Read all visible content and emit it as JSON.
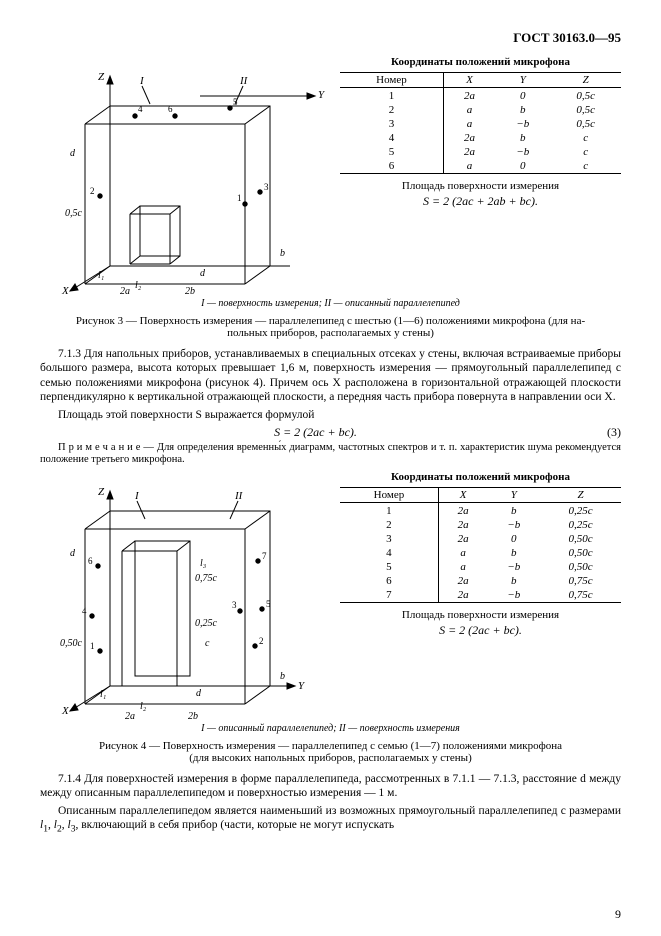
{
  "header": "ГОСТ 30163.0—95",
  "fig3": {
    "legend": "I — поверхность измерения; II — описанный параллелепипед",
    "caption_line1": "Рисунок 3 — Поверхность измерения — параллелепипед с шестью (1—6) положениями микрофона (для на-",
    "caption_line2": "польных приборов, располагаемых у стены)"
  },
  "table1": {
    "title": "Координаты положений микрофона",
    "headers": [
      "Номер",
      "X",
      "Y",
      "Z"
    ],
    "rows": [
      [
        "1",
        "2a",
        "0",
        "0,5c"
      ],
      [
        "2",
        "a",
        "b",
        "0,5c"
      ],
      [
        "3",
        "a",
        "−b",
        "0,5c"
      ],
      [
        "4",
        "2a",
        "b",
        "c"
      ],
      [
        "5",
        "2a",
        "−b",
        "c"
      ],
      [
        "6",
        "a",
        "0",
        "c"
      ]
    ],
    "area_caption": "Площадь поверхности измерения",
    "formula": "S = 2 (2ac + 2ab + bc)."
  },
  "para_713": "7.1.3 Для напольных приборов, устанавливаемых в специальных отсеках у стены, включая встраиваемые приборы большого размера, высота которых превышает 1,6 м, поверхность измерения — прямоугольный параллелепипед с семью положениями микрофона (рисунок 4). Причем ось X расположена в горизонтальной отражающей плоскости перпендикулярно к вертикальной отражающей плоскости, а передняя часть прибора повернута в направлении оси X.",
  "para_area": "Площадь этой поверхности S выражается формулой",
  "formula3": "S = 2 (2ac + bc).",
  "eqnum3": "(3)",
  "note": "П р и м е ч а н и е — Для определения временны́х диаграмм, частотных спектров и т. п. характеристик шума рекомендуется положение третьего микрофона.",
  "table2": {
    "title": "Координаты положений микрофона",
    "headers": [
      "Номер",
      "X",
      "Y",
      "Z"
    ],
    "rows": [
      [
        "1",
        "2a",
        "b",
        "0,25c"
      ],
      [
        "2",
        "2a",
        "−b",
        "0,25c"
      ],
      [
        "3",
        "2a",
        "0",
        "0,50c"
      ],
      [
        "4",
        "a",
        "b",
        "0,50c"
      ],
      [
        "5",
        "a",
        "−b",
        "0,50c"
      ],
      [
        "6",
        "2a",
        "b",
        "0,75c"
      ],
      [
        "7",
        "2a",
        "−b",
        "0,75c"
      ]
    ],
    "area_caption": "Площадь поверхности измерения",
    "formula": "S = 2 (2ac + bc)."
  },
  "fig4": {
    "legend": "I — описанный параллелепипед; II — поверхность измерения",
    "caption_line1": "Рисунок 4 — Поверхность измерения — параллелепипед с семью (1—7) положениями микрофона",
    "caption_line2": "(для высоких напольных приборов, располагаемых у стены)"
  },
  "para_714a": "7.1.4 Для поверхностей измерения в форме параллелепипеда, рассмотренных в 7.1.1 — 7.1.3, расстояние d между между описанным параллелепипедом и поверхностью измерения — 1 м.",
  "para_714b": "Описанным параллелепипедом является наименьший из возможных прямоугольный параллелепипед с размерами l₁, l₂, l₃, включающий в себя прибор (части, которые не могут испускать",
  "page_number": "9"
}
